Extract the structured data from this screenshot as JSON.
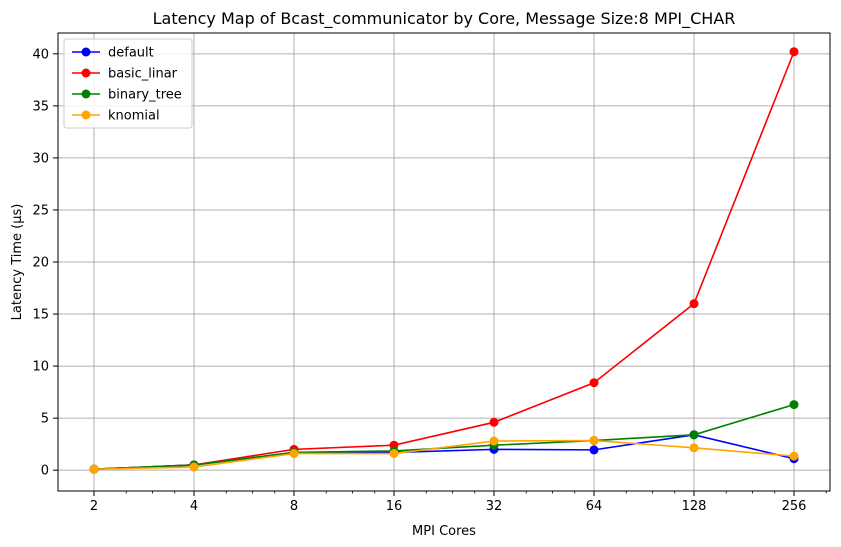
{
  "chart_data": {
    "type": "line",
    "title": "Latency Map of Bcast_communicator by Core, Message Size:8 MPI_CHAR",
    "xlabel": "MPI Cores",
    "ylabel": "Latency Time (μs)",
    "x_scale": "log2",
    "x": [
      2,
      4,
      8,
      16,
      32,
      64,
      128,
      256
    ],
    "x_tick_labels": [
      "2",
      "4",
      "8",
      "16",
      "32",
      "64",
      "128",
      "256"
    ],
    "ylim": [
      -2,
      42
    ],
    "y_ticks": [
      0,
      5,
      10,
      15,
      20,
      25,
      30,
      35,
      40
    ],
    "grid": true,
    "legend_position": "top-left",
    "series": [
      {
        "name": "default",
        "color": "#0000ff",
        "values": [
          0.1,
          0.5,
          1.7,
          1.7,
          2.0,
          1.95,
          3.4,
          1.1
        ]
      },
      {
        "name": "basic_linar",
        "color": "#ff0000",
        "values": [
          0.1,
          0.5,
          2.0,
          2.4,
          4.6,
          8.4,
          16.0,
          40.2
        ]
      },
      {
        "name": "binary_tree",
        "color": "#008000",
        "values": [
          0.1,
          0.5,
          1.7,
          1.85,
          2.4,
          2.85,
          3.4,
          6.3
        ]
      },
      {
        "name": "knomial",
        "color": "#ffa500",
        "values": [
          0.1,
          0.3,
          1.6,
          1.6,
          2.8,
          2.85,
          2.15,
          1.35
        ]
      }
    ]
  }
}
